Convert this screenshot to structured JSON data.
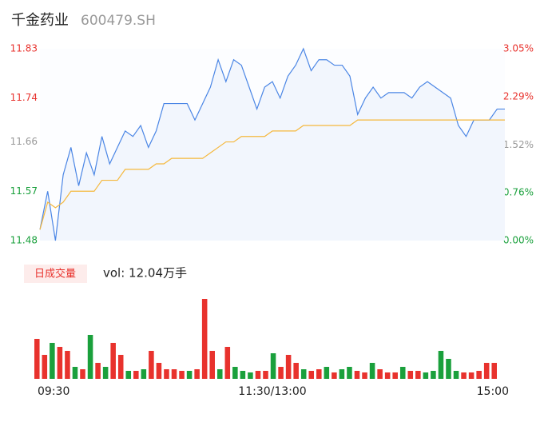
{
  "header": {
    "title": "千金药业",
    "code": "600479.SH"
  },
  "chart_data": [
    {
      "type": "line",
      "xlim": [
        0,
        60
      ],
      "xticks": [
        {
          "value": 0,
          "label": "09:30"
        },
        {
          "value": 30,
          "label": "11:30/13:00"
        },
        {
          "value": 60,
          "label": "15:00"
        }
      ],
      "ylim": [
        11.48,
        11.83
      ],
      "yticks": [
        11.83,
        11.74,
        11.66,
        11.57,
        11.48
      ],
      "y2lim": [
        0,
        3.05
      ],
      "y2ticks": [
        {
          "value": 3.05,
          "label": "3.05%"
        },
        {
          "value": 2.29,
          "label": "2.29%"
        },
        {
          "value": 1.52,
          "label": "1.52%"
        },
        {
          "value": 0.76,
          "label": "0.76%"
        },
        {
          "value": 0,
          "label": "0.00%"
        }
      ],
      "up_color": "#e8322d",
      "down_color": "#1aa03c",
      "flat_color": "#999999",
      "series": [
        {
          "color": "#4b86e5",
          "fill": "#f2f6fd",
          "values": [
            11.5,
            11.57,
            11.48,
            11.6,
            11.65,
            11.58,
            11.64,
            11.6,
            11.67,
            11.62,
            11.65,
            11.68,
            11.67,
            11.69,
            11.65,
            11.68,
            11.73,
            11.73,
            11.73,
            11.73,
            11.7,
            11.73,
            11.76,
            11.81,
            11.77,
            11.81,
            11.8,
            11.76,
            11.72,
            11.76,
            11.77,
            11.74,
            11.78,
            11.8,
            11.83,
            11.79,
            11.81,
            11.81,
            11.8,
            11.8,
            11.78,
            11.71,
            11.74,
            11.76,
            11.74,
            11.75,
            11.75,
            11.75,
            11.74,
            11.76,
            11.77,
            11.76,
            11.75,
            11.74,
            11.69,
            11.67,
            11.7,
            11.7,
            11.7,
            11.72,
            11.72
          ]
        },
        {
          "color": "#f5b83d",
          "values": [
            11.5,
            11.55,
            11.54,
            11.55,
            11.57,
            11.57,
            11.57,
            11.57,
            11.59,
            11.59,
            11.59,
            11.61,
            11.61,
            11.61,
            11.61,
            11.62,
            11.62,
            11.63,
            11.63,
            11.63,
            11.63,
            11.63,
            11.64,
            11.65,
            11.66,
            11.66,
            11.67,
            11.67,
            11.67,
            11.67,
            11.68,
            11.68,
            11.68,
            11.68,
            11.69,
            11.69,
            11.69,
            11.69,
            11.69,
            11.69,
            11.69,
            11.7,
            11.7,
            11.7,
            11.7,
            11.7,
            11.7,
            11.7,
            11.7,
            11.7,
            11.7,
            11.7,
            11.7,
            11.7,
            11.7,
            11.7,
            11.7,
            11.7,
            11.7,
            11.7,
            11.7
          ]
        }
      ]
    },
    {
      "type": "volume",
      "title": "日成交量",
      "volume_label": "vol: 12.04万手",
      "ylim": [
        0,
        110
      ],
      "values": [
        50,
        30,
        45,
        40,
        35,
        15,
        12,
        55,
        20,
        15,
        45,
        30,
        10,
        10,
        12,
        35,
        20,
        12,
        12,
        10,
        10,
        12,
        100,
        35,
        12,
        40,
        15,
        10,
        8,
        10,
        10,
        32,
        15,
        30,
        20,
        12,
        10,
        12,
        15,
        8,
        12,
        15,
        10,
        8,
        20,
        12,
        8,
        8,
        15,
        10,
        10,
        8,
        10,
        35,
        25,
        10,
        8,
        8,
        10,
        20,
        20
      ]
    }
  ]
}
